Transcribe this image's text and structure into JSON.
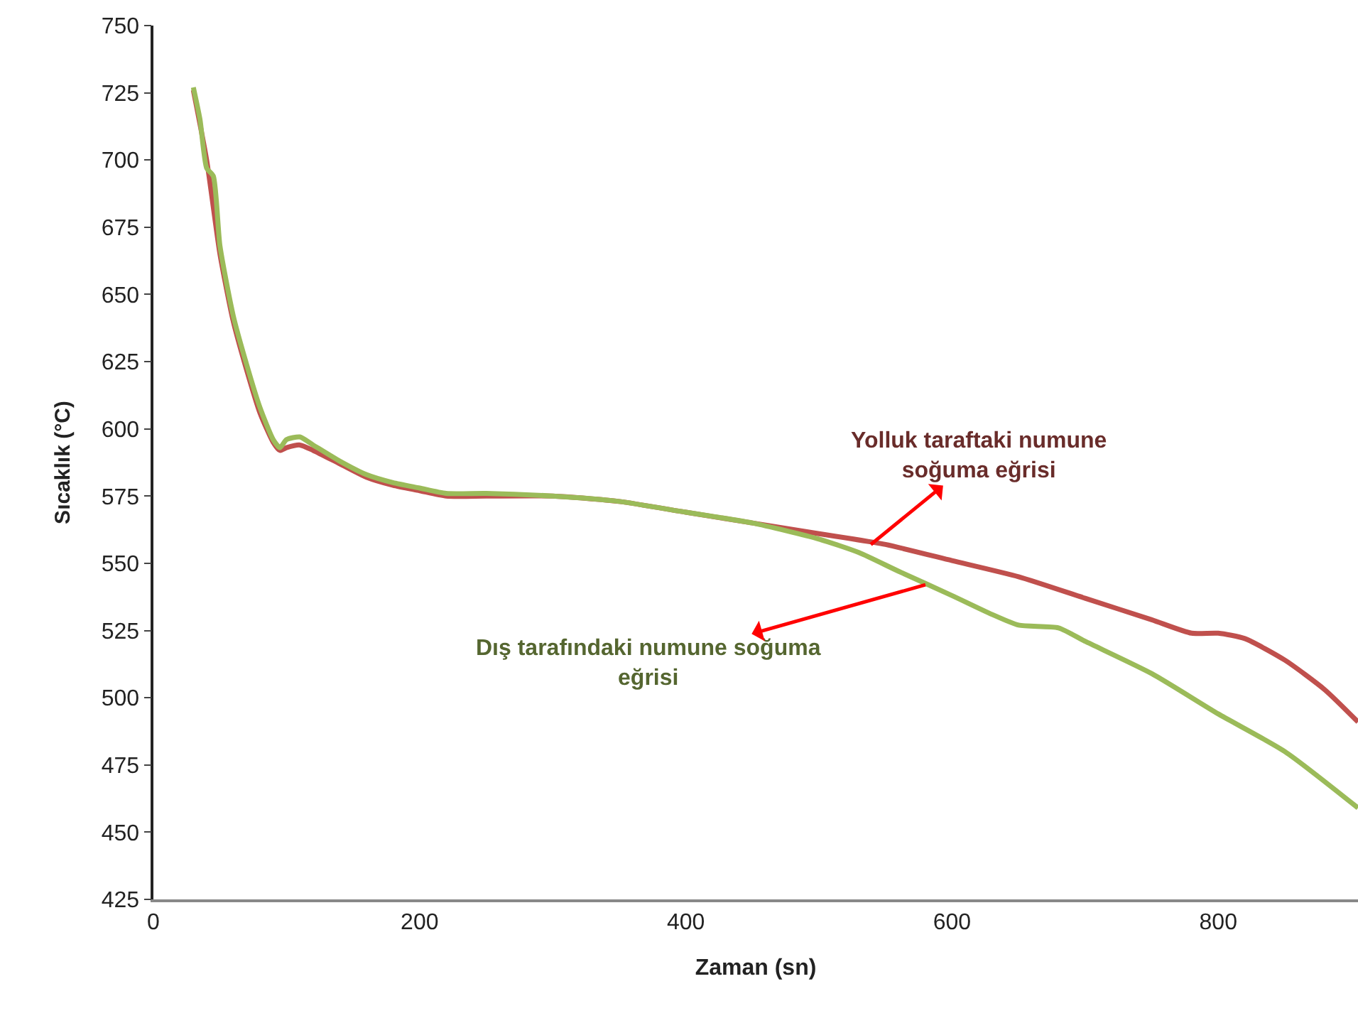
{
  "chart_data": {
    "type": "line",
    "xlabel": "Zaman (sn)",
    "ylabel": "Sıcaklık (°C)",
    "xlim": [
      0,
      905
    ],
    "xticks": [
      0,
      200,
      400,
      600,
      800
    ],
    "ylim": [
      425,
      750
    ],
    "yticks": [
      425,
      450,
      475,
      500,
      525,
      550,
      575,
      600,
      625,
      650,
      675,
      700,
      725,
      750
    ],
    "marker": "none",
    "line_style": "solid",
    "series": [
      {
        "color": "#c0504d",
        "x": [
          30,
          40,
          50,
          60,
          70,
          80,
          90,
          95,
          100,
          110,
          120,
          140,
          160,
          180,
          200,
          220,
          250,
          300,
          350,
          400,
          450,
          500,
          550,
          600,
          650,
          700,
          750,
          780,
          800,
          820,
          850,
          880,
          905
        ],
        "values": [
          726,
          700,
          665,
          640,
          622,
          606,
          595,
          592,
          593,
          594,
          592,
          587,
          582,
          579,
          577,
          575,
          575,
          575,
          573,
          569,
          565,
          561,
          557,
          551,
          545,
          537,
          529,
          524,
          524,
          522,
          514,
          503,
          491
        ]
      },
      {
        "color": "#9bbb59",
        "x": [
          30,
          35,
          40,
          45,
          50,
          60,
          70,
          80,
          90,
          95,
          100,
          110,
          120,
          140,
          160,
          180,
          200,
          220,
          250,
          300,
          350,
          400,
          450,
          500,
          530,
          560,
          600,
          630,
          650,
          680,
          700,
          750,
          800,
          850,
          905
        ],
        "values": [
          727,
          715,
          697,
          694,
          668,
          642,
          624,
          608,
          596,
          593,
          596,
          597,
          594,
          588,
          583,
          580,
          578,
          576,
          576,
          575,
          573,
          569,
          565,
          559,
          554,
          547,
          538,
          531,
          527,
          526,
          521,
          509,
          494,
          480,
          459
        ]
      }
    ],
    "annotations": [
      {
        "text": "Yolluk taraftaki numune\nsoğuma eğrisi",
        "x": 539,
        "y": 557
      },
      {
        "text": "Dış tarafındaki numune soğuma\neğrisi",
        "x": 580,
        "y": 542
      }
    ]
  }
}
